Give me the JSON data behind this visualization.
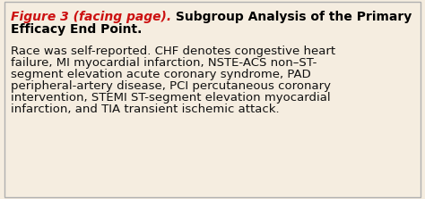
{
  "background_color": "#f5ede0",
  "border_color": "#b0b0b0",
  "title_red": "Figure 3 (facing page).",
  "title_red_color": "#cc1111",
  "title_bold_1": " Subgroup Analysis of the Primary",
  "title_bold_2": "Efficacy End Point.",
  "title_bold_color": "#000000",
  "body_text_lines": [
    "Race was self-reported. CHF denotes congestive heart",
    "failure, MI myocardial infarction, NSTE-ACS non–ST-",
    "segment elevation acute coronary syndrome, PAD",
    "peripheral-artery disease, PCI percutaneous coronary",
    "intervention, STEMI ST-segment elevation myocardial",
    "infarction, and TIA transient ischemic attack."
  ],
  "body_color": "#111111",
  "title_fontsize": 10.0,
  "body_fontsize": 9.5,
  "fig_width": 4.74,
  "fig_height": 2.23,
  "dpi": 100
}
